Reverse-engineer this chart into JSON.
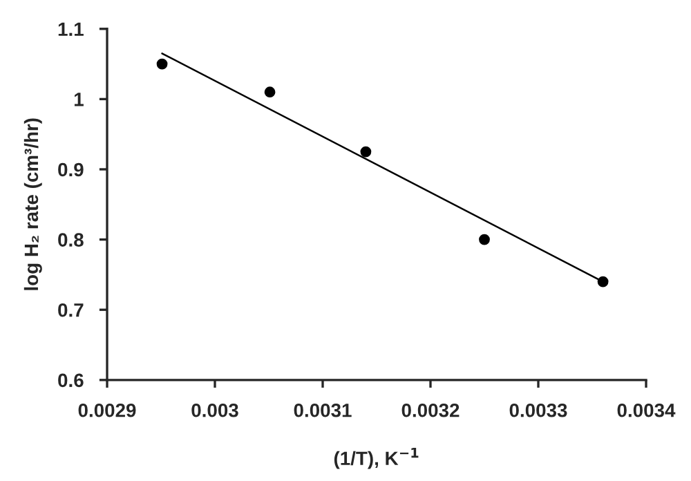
{
  "chart_data": {
    "type": "scatter",
    "xlabel": "(1/T), K$^{−1}$",
    "ylabel": "log H₂ rate (cm³/hr)",
    "x": [
      0.002951,
      0.003051,
      0.00314,
      0.00325,
      0.00336
    ],
    "series": [
      {
        "color": "#000000",
        "values": [
          1.05,
          1.01,
          0.925,
          0.8,
          0.74
        ],
        "marker": "circle"
      },
      {
        "type": "line",
        "color": "#000000",
        "x": [
          0.002951,
          0.00336
        ],
        "values": [
          1.065,
          0.74
        ],
        "marker": "none"
      }
    ],
    "xlim": [
      0.0029,
      0.0034
    ],
    "xticks": [
      0.0029,
      0.003,
      0.0031,
      0.0032,
      0.0033,
      0.0034
    ],
    "ylim": [
      0.6,
      1.1
    ],
    "yticks": [
      0.6,
      0.7,
      0.8,
      0.9,
      1,
      1.1
    ],
    "grid": false,
    "legend": false
  }
}
